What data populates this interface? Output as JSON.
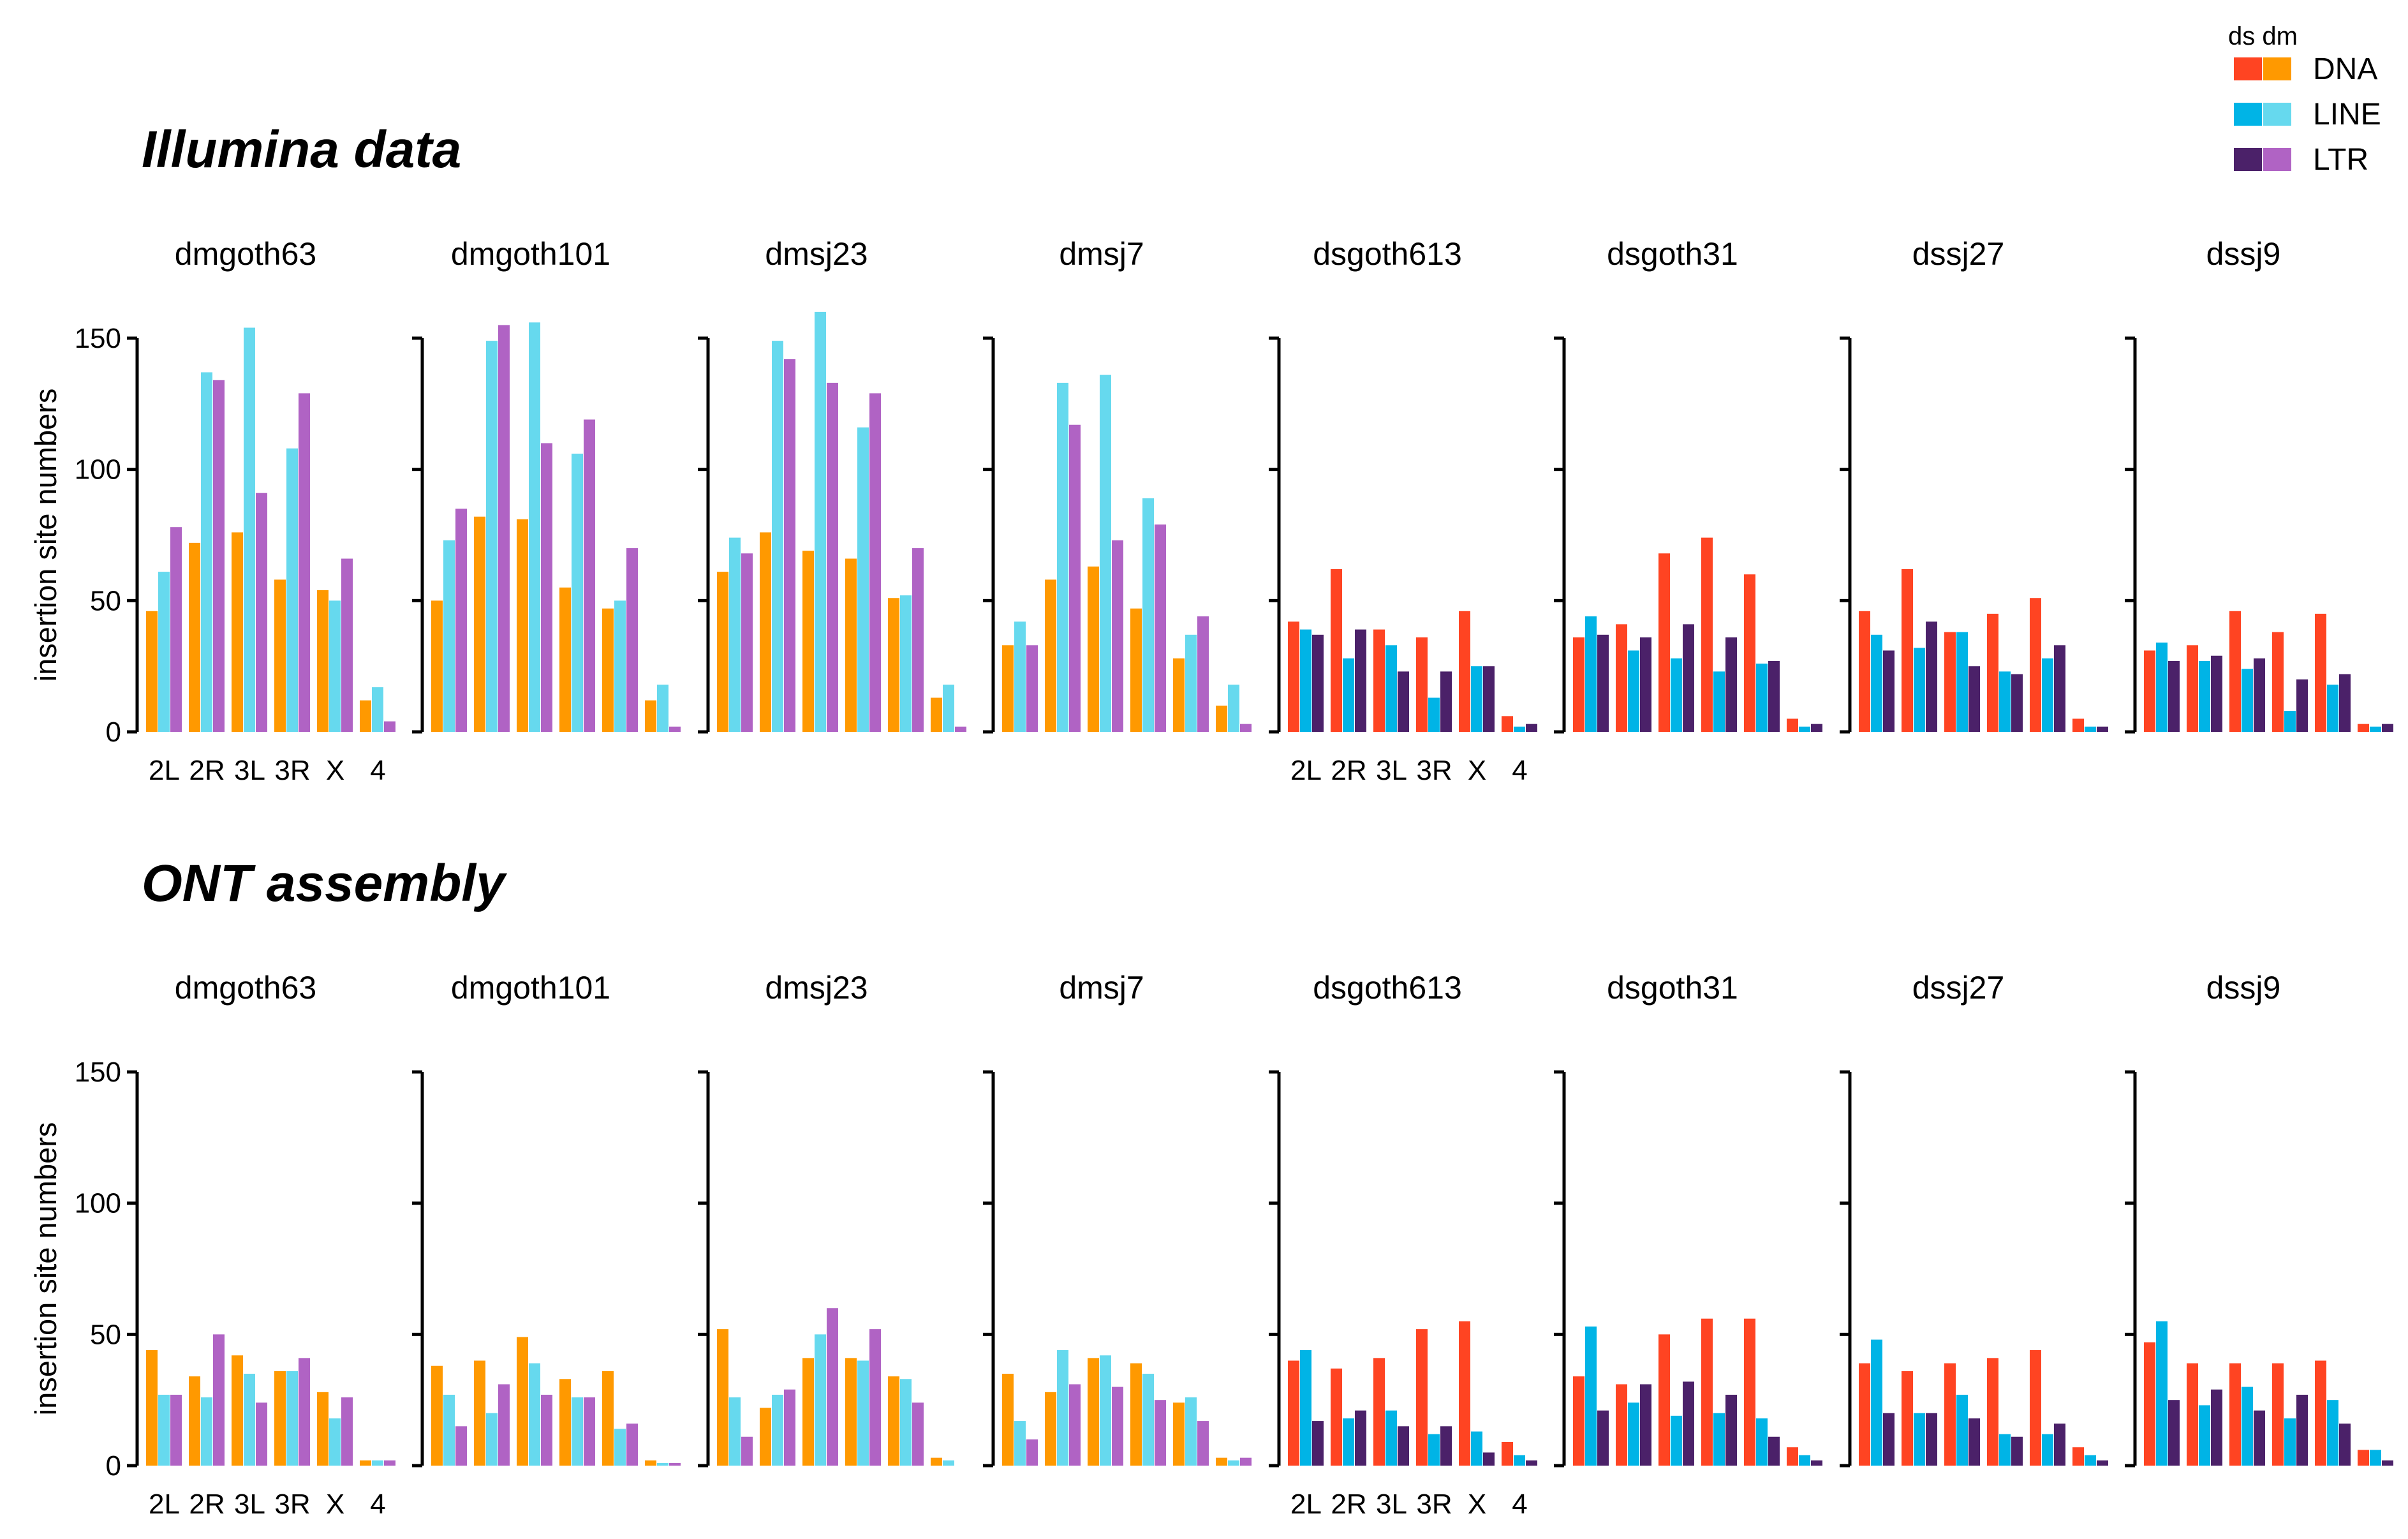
{
  "legend": {
    "header": "ds dm",
    "items": [
      {
        "label": "DNA",
        "ds_color": "#FF4422",
        "dm_color": "#FF9900"
      },
      {
        "label": "LINE",
        "ds_color": "#00B4E6",
        "dm_color": "#66D9EE"
      },
      {
        "label": "LTR",
        "ds_color": "#4B2169",
        "dm_color": "#B063C4"
      }
    ]
  },
  "axis": {
    "ylabel": "insertion site numbers",
    "yticks": [
      0,
      50,
      100,
      150
    ],
    "ylim": [
      0,
      150
    ],
    "categories": [
      "2L",
      "2R",
      "3L",
      "3R",
      "X",
      "4"
    ]
  },
  "chart_data": [
    {
      "type": "bar",
      "title": "Illumina data",
      "ylabel": "insertion site numbers",
      "ylim": [
        0,
        150
      ],
      "categories": [
        "2L",
        "2R",
        "3L",
        "3R",
        "X",
        "4"
      ],
      "series_names": [
        "DNA",
        "LINE",
        "LTR"
      ],
      "panels": [
        {
          "name": "dmgoth63",
          "species": "dm",
          "values": {
            "DNA": [
              46,
              72,
              76,
              58,
              54,
              12
            ],
            "LINE": [
              61,
              137,
              154,
              108,
              50,
              17
            ],
            "LTR": [
              78,
              134,
              91,
              129,
              66,
              4
            ]
          }
        },
        {
          "name": "dmgoth101",
          "species": "dm",
          "values": {
            "DNA": [
              50,
              82,
              81,
              55,
              47,
              12
            ],
            "LINE": [
              73,
              149,
              156,
              106,
              50,
              18
            ],
            "LTR": [
              85,
              155,
              110,
              119,
              70,
              2
            ]
          }
        },
        {
          "name": "dmsj23",
          "species": "dm",
          "values": {
            "DNA": [
              61,
              76,
              69,
              66,
              51,
              13
            ],
            "LINE": [
              74,
              149,
              160,
              116,
              52,
              18
            ],
            "LTR": [
              68,
              142,
              133,
              129,
              70,
              2
            ]
          }
        },
        {
          "name": "dmsj7",
          "species": "dm",
          "values": {
            "DNA": [
              33,
              58,
              63,
              47,
              28,
              10
            ],
            "LINE": [
              42,
              133,
              136,
              89,
              37,
              18
            ],
            "LTR": [
              33,
              117,
              73,
              79,
              44,
              3
            ]
          }
        },
        {
          "name": "dsgoth613",
          "species": "ds",
          "values": {
            "DNA": [
              42,
              62,
              39,
              36,
              46,
              6
            ],
            "LINE": [
              39,
              28,
              33,
              13,
              25,
              2
            ],
            "LTR": [
              37,
              39,
              23,
              23,
              25,
              3
            ]
          }
        },
        {
          "name": "dsgoth31",
          "species": "ds",
          "values": {
            "DNA": [
              36,
              41,
              68,
              74,
              60,
              5
            ],
            "LINE": [
              44,
              31,
              28,
              23,
              26,
              2
            ],
            "LTR": [
              37,
              36,
              41,
              36,
              27,
              3
            ]
          }
        },
        {
          "name": "dssj27",
          "species": "ds",
          "values": {
            "DNA": [
              46,
              62,
              38,
              45,
              51,
              5
            ],
            "LINE": [
              37,
              32,
              38,
              23,
              28,
              2
            ],
            "LTR": [
              31,
              42,
              25,
              22,
              33,
              2
            ]
          }
        },
        {
          "name": "dssj9",
          "species": "ds",
          "values": {
            "DNA": [
              31,
              33,
              46,
              38,
              45,
              3
            ],
            "LINE": [
              34,
              27,
              24,
              8,
              18,
              2
            ],
            "LTR": [
              27,
              29,
              28,
              20,
              22,
              3
            ]
          }
        }
      ]
    },
    {
      "type": "bar",
      "title": "ONT assembly",
      "ylabel": "insertion site numbers",
      "ylim": [
        0,
        150
      ],
      "categories": [
        "2L",
        "2R",
        "3L",
        "3R",
        "X",
        "4"
      ],
      "series_names": [
        "DNA",
        "LINE",
        "LTR"
      ],
      "panels": [
        {
          "name": "dmgoth63",
          "species": "dm",
          "values": {
            "DNA": [
              44,
              34,
              42,
              36,
              28,
              2
            ],
            "LINE": [
              27,
              26,
              35,
              36,
              18,
              2
            ],
            "LTR": [
              27,
              50,
              24,
              41,
              26,
              2
            ]
          }
        },
        {
          "name": "dmgoth101",
          "species": "dm",
          "values": {
            "DNA": [
              38,
              40,
              49,
              33,
              36,
              2
            ],
            "LINE": [
              27,
              20,
              39,
              26,
              14,
              1
            ],
            "LTR": [
              15,
              31,
              27,
              26,
              16,
              1
            ]
          }
        },
        {
          "name": "dmsj23",
          "species": "dm",
          "values": {
            "DNA": [
              52,
              22,
              41,
              41,
              34,
              3
            ],
            "LINE": [
              26,
              27,
              50,
              40,
              33,
              2
            ],
            "LTR": [
              11,
              29,
              60,
              52,
              24,
              0
            ]
          }
        },
        {
          "name": "dmsj7",
          "species": "dm",
          "values": {
            "DNA": [
              35,
              28,
              41,
              39,
              24,
              3
            ],
            "LINE": [
              17,
              44,
              42,
              35,
              26,
              2
            ],
            "LTR": [
              10,
              31,
              30,
              25,
              17,
              3
            ]
          }
        },
        {
          "name": "dsgoth613",
          "species": "ds",
          "values": {
            "DNA": [
              40,
              37,
              41,
              52,
              55,
              9
            ],
            "LINE": [
              44,
              18,
              21,
              12,
              13,
              4
            ],
            "LTR": [
              17,
              21,
              15,
              15,
              5,
              2
            ]
          }
        },
        {
          "name": "dsgoth31",
          "species": "ds",
          "values": {
            "DNA": [
              34,
              31,
              50,
              56,
              56,
              7
            ],
            "LINE": [
              53,
              24,
              19,
              20,
              18,
              4
            ],
            "LTR": [
              21,
              31,
              32,
              27,
              11,
              2
            ]
          }
        },
        {
          "name": "dssj27",
          "species": "ds",
          "values": {
            "DNA": [
              39,
              36,
              39,
              41,
              44,
              7
            ],
            "LINE": [
              48,
              20,
              27,
              12,
              12,
              4
            ],
            "LTR": [
              20,
              20,
              18,
              11,
              16,
              2
            ]
          }
        },
        {
          "name": "dssj9",
          "species": "ds",
          "values": {
            "DNA": [
              47,
              39,
              39,
              39,
              40,
              6
            ],
            "LINE": [
              55,
              23,
              30,
              18,
              25,
              6
            ],
            "LTR": [
              25,
              29,
              21,
              27,
              16,
              2
            ]
          }
        }
      ]
    }
  ]
}
